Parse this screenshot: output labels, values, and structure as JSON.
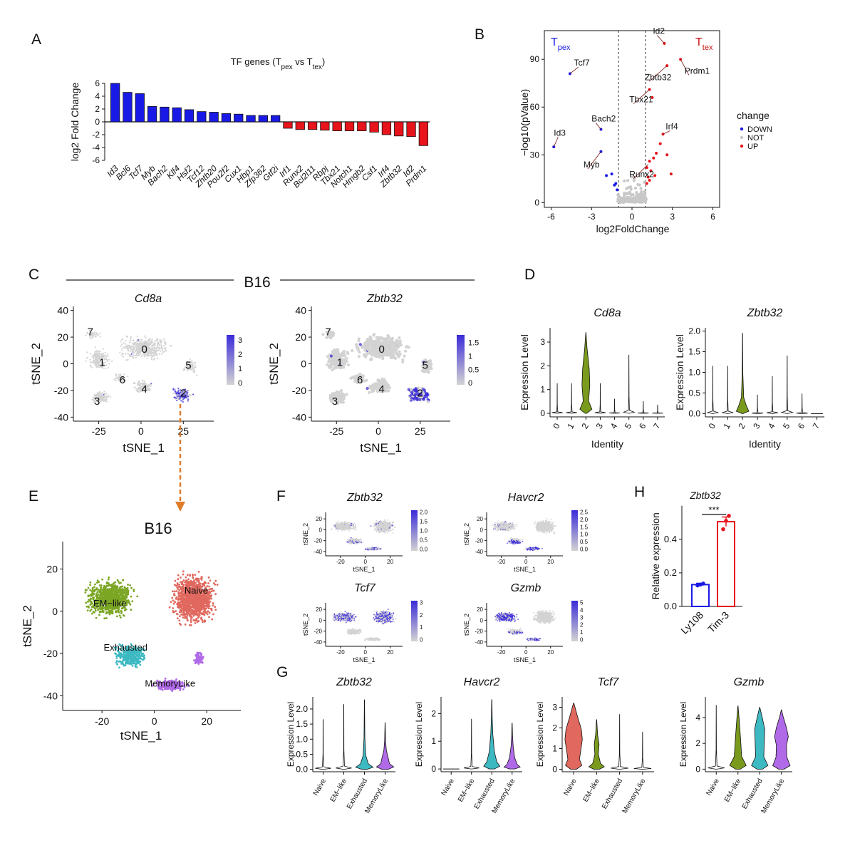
{
  "colors": {
    "up": "#e8141b",
    "down": "#1a1ae6",
    "not": "#c8c8c8",
    "feature_low": "#d3d3d3",
    "feature_high": "#3b2bd8",
    "naive": "#e0685e",
    "em_like": "#7ba624",
    "exhausted": "#3db9c2",
    "memory_like": "#b06ae8",
    "violin_green": "#7a9a1e",
    "arrow": "#e07b2a",
    "bar_ly108": "#1a1ae6",
    "bar_tim3": "#e8141b"
  },
  "panels": {
    "A": {
      "letter": "A",
      "title": "TF genes (T",
      "title_sub1": "pex",
      "title_mid": " vs T",
      "title_sub2": "tex",
      "title_end": ")"
    },
    "B": {
      "letter": "B",
      "tpex": "T",
      "tpex_sub": "pex",
      "ttex": "T",
      "ttex_sub": "tex"
    },
    "C": {
      "letter": "C",
      "cond": "B16",
      "feature1": "Cd8a",
      "feature2": "Zbtb32"
    },
    "D": {
      "letter": "D"
    },
    "E": {
      "letter": "E",
      "cond": "B16"
    },
    "F": {
      "letter": "F"
    },
    "G": {
      "letter": "G"
    },
    "H": {
      "letter": "H"
    }
  },
  "chart_data": [
    {
      "panel": "A",
      "type": "bar",
      "title": "TF genes (Tpex vs Ttex)",
      "ylabel": "log2 Fold Change",
      "ylim": [
        -6,
        6
      ],
      "yticks": [
        -6,
        -4,
        -2,
        0,
        2,
        4,
        6
      ],
      "categories": [
        "Id3",
        "Bcl6",
        "Tcf7",
        "Myb",
        "Bach2",
        "Klf4",
        "Hsf2",
        "Tcf12",
        "Zhtb20",
        "Pou2f2",
        "Cux1",
        "Hbp1",
        "Zfp362",
        "Gtf2i",
        "Irf1",
        "Runx2",
        "Bcl2l11",
        "Rbpj",
        "Tbx21",
        "Notch1",
        "Hmgb2",
        "Csf1",
        "Irf4",
        "Zbtb32",
        "Id2",
        "Prdm1"
      ],
      "values": [
        6.0,
        4.6,
        4.4,
        2.4,
        2.3,
        2.2,
        1.9,
        1.6,
        1.5,
        1.3,
        1.2,
        1.0,
        1.0,
        1.0,
        -1.0,
        -1.2,
        -1.2,
        -1.3,
        -1.4,
        -1.4,
        -1.4,
        -1.6,
        -2.0,
        -2.2,
        -2.3,
        -3.7
      ]
    },
    {
      "panel": "B",
      "type": "scatter",
      "xlabel": "log2FoldChange",
      "ylabel": "−log10(pValue)",
      "xlim": [
        -6.5,
        6.5
      ],
      "ylim": [
        -3,
        108
      ],
      "xticks": [
        -6,
        -3,
        0,
        3,
        6
      ],
      "yticks": [
        0,
        30,
        60,
        90
      ],
      "thresholds": [
        -1,
        1
      ],
      "legend_title": "change",
      "legend": [
        "DOWN",
        "NOT",
        "UP"
      ],
      "labels": [
        {
          "gene": "Id2",
          "x": 2.4,
          "y": 100,
          "tx": 1.55,
          "ty": 106
        },
        {
          "gene": "Tcf7",
          "x": -4.6,
          "y": 81,
          "tx": -4.3,
          "ty": 86
        },
        {
          "gene": "Prdm1",
          "x": 3.6,
          "y": 90,
          "tx": 3.9,
          "ty": 81
        },
        {
          "gene": "Zbtb32",
          "x": 2.6,
          "y": 86,
          "tx": 0.95,
          "ty": 77
        },
        {
          "gene": "Tbx21",
          "x": 1.3,
          "y": 71,
          "tx": -0.2,
          "ty": 63
        },
        {
          "gene": "Bach2",
          "x": -2.3,
          "y": 46,
          "tx": -3.0,
          "ty": 51
        },
        {
          "gene": "Irf4",
          "x": 2.3,
          "y": 43,
          "tx": 2.5,
          "ty": 46
        },
        {
          "gene": "Id3",
          "x": -5.8,
          "y": 35,
          "tx": -5.8,
          "ty": 42
        },
        {
          "gene": "Myb",
          "x": -2.3,
          "y": 32,
          "tx": -3.6,
          "ty": 22
        },
        {
          "gene": "Runx2",
          "x": 1.2,
          "y": 24,
          "tx": -0.2,
          "ty": 16
        }
      ],
      "up": [
        [
          2.4,
          100
        ],
        [
          3.6,
          90
        ],
        [
          2.6,
          86
        ],
        [
          1.3,
          71
        ],
        [
          2.3,
          43
        ],
        [
          1.5,
          66
        ],
        [
          2.1,
          37
        ],
        [
          1.8,
          31
        ],
        [
          1.6,
          28
        ],
        [
          1.3,
          26
        ],
        [
          2.6,
          30
        ],
        [
          1.1,
          22
        ],
        [
          1.4,
          20
        ],
        [
          2.9,
          18
        ],
        [
          1.7,
          17
        ],
        [
          1.2,
          16
        ],
        [
          1.3,
          14
        ],
        [
          1.1,
          12
        ]
      ],
      "down": [
        [
          -4.6,
          81
        ],
        [
          -5.8,
          35
        ],
        [
          -2.3,
          46
        ],
        [
          -2.3,
          32
        ],
        [
          -1.9,
          17
        ],
        [
          -1.5,
          18
        ],
        [
          -1.1,
          8
        ],
        [
          -1.2,
          12
        ],
        [
          -1.3,
          11
        ]
      ]
    },
    {
      "panel": "C1",
      "type": "scatter",
      "feature": "Cd8a",
      "xlabel": "tSNE_1",
      "ylabel": "tSNE_2",
      "xlim": [
        -40,
        43
      ],
      "ylim": [
        -43,
        43
      ],
      "xticks": [
        -25,
        0,
        25
      ],
      "yticks": [
        -40,
        -20,
        0,
        20,
        40
      ],
      "colorbar": [
        0,
        1,
        2,
        3
      ],
      "clusters": [
        {
          "label": "0",
          "x": 2,
          "y": 11
        },
        {
          "label": "1",
          "x": -23,
          "y": 1
        },
        {
          "label": "2",
          "x": 25,
          "y": -22
        },
        {
          "label": "3",
          "x": -26,
          "y": -28
        },
        {
          "label": "4",
          "x": 2,
          "y": -19
        },
        {
          "label": "5",
          "x": 28,
          "y": -1
        },
        {
          "label": "6",
          "x": -11,
          "y": -12
        },
        {
          "label": "7",
          "x": -30,
          "y": 24
        }
      ]
    },
    {
      "panel": "C2",
      "type": "scatter",
      "feature": "Zbtb32",
      "xlabel": "tSNE_1",
      "ylabel": "tSNE_2",
      "xlim": [
        -40,
        43
      ],
      "ylim": [
        -43,
        43
      ],
      "xticks": [
        -25,
        0,
        25
      ],
      "yticks": [
        -40,
        -20,
        0,
        20,
        40
      ],
      "colorbar": [
        0.0,
        0.5,
        1.0,
        1.5
      ],
      "clusters": [
        {
          "label": "0",
          "x": 2,
          "y": 11
        },
        {
          "label": "1",
          "x": -23,
          "y": 1
        },
        {
          "label": "2",
          "x": 25,
          "y": -22
        },
        {
          "label": "3",
          "x": -26,
          "y": -28
        },
        {
          "label": "4",
          "x": 2,
          "y": -19
        },
        {
          "label": "5",
          "x": 28,
          "y": -1
        },
        {
          "label": "6",
          "x": -11,
          "y": -12
        },
        {
          "label": "7",
          "x": -30,
          "y": 24
        }
      ]
    },
    {
      "panel": "D1",
      "type": "violin",
      "title": "Cd8a",
      "xlabel": "Identity",
      "ylabel": "Expression Level",
      "categories": [
        "0",
        "1",
        "2",
        "3",
        "4",
        "5",
        "6",
        "7"
      ],
      "ylim": [
        -0.15,
        3.6
      ],
      "yticks": [
        0,
        1,
        2,
        3
      ],
      "max_values": [
        1.25,
        1.25,
        3.4,
        1.25,
        0.6,
        2.45,
        0.5,
        0.35
      ],
      "highlight": 2
    },
    {
      "panel": "D2",
      "type": "violin",
      "title": "Zbtb32",
      "xlabel": "Identity",
      "ylabel": "Expression Level",
      "categories": [
        "0",
        "1",
        "2",
        "3",
        "4",
        "5",
        "6",
        "7"
      ],
      "ylim": [
        -0.08,
        2.08
      ],
      "yticks": [
        0.0,
        0.5,
        1.0,
        1.5,
        2.0
      ],
      "max_values": [
        1.15,
        1.15,
        1.95,
        0.45,
        0.9,
        1.4,
        0.48,
        0.0
      ],
      "highlight": 2
    },
    {
      "panel": "E",
      "type": "scatter",
      "xlabel": "tSNE_1",
      "ylabel": "tSNE_2",
      "xlim": [
        -35,
        33
      ],
      "ylim": [
        -47,
        33
      ],
      "xticks": [
        -20,
        0,
        20
      ],
      "yticks": [
        -40,
        -20,
        0,
        20
      ],
      "clusters": [
        {
          "label": "EM−like",
          "x": -17,
          "y": 4
        },
        {
          "label": "Naive",
          "x": 16,
          "y": 10
        },
        {
          "label": "Exhausted",
          "x": -11,
          "y": -17
        },
        {
          "label": "MemoryLike",
          "x": 6,
          "y": -34
        }
      ]
    },
    {
      "panel": "F",
      "type": "scatter",
      "xlabel": "tSNE_1",
      "ylabel": "tSNE_2",
      "xticks": [
        -20,
        0,
        20
      ],
      "yticks": [
        -40,
        -20,
        0,
        20
      ],
      "features": [
        {
          "name": "Zbtb32",
          "colorbar": [
            0.0,
            0.5,
            1.0,
            1.5,
            2.0
          ]
        },
        {
          "name": "Havcr2",
          "colorbar": [
            0.0,
            0.5,
            1.0,
            1.5,
            2.0,
            2.5
          ]
        },
        {
          "name": "Tcf7",
          "colorbar": [
            0,
            1,
            2,
            3
          ]
        },
        {
          "name": "Gzmb",
          "colorbar": [
            0,
            1,
            2,
            3,
            4,
            5
          ]
        }
      ]
    },
    {
      "panel": "G",
      "type": "violin",
      "ylabel": "Expression Level",
      "categories": [
        "Naive",
        "EM−like",
        "Exhausted",
        "MemoryLike"
      ],
      "plots": [
        {
          "title": "Zbtb32",
          "yticks": [
            0.0,
            0.5,
            1.0,
            1.5,
            2.0
          ],
          "ylim": [
            -0.08,
            2.4
          ],
          "max_values": [
            1.65,
            2.15,
            2.3,
            1.55
          ]
        },
        {
          "title": "Havcr2",
          "yticks": [
            0,
            1,
            2
          ],
          "ylim": [
            -0.1,
            2.6
          ],
          "max_values": [
            0.0,
            1.8,
            2.5,
            1.65
          ]
        },
        {
          "title": "Tcf7",
          "yticks": [
            0,
            1,
            2,
            3
          ],
          "ylim": [
            -0.12,
            3.5
          ],
          "max_values": [
            3.2,
            2.4,
            2.65,
            1.8
          ]
        },
        {
          "title": "Gzmb",
          "yticks": [
            0,
            2,
            4
          ],
          "ylim": [
            -0.2,
            5.6
          ],
          "max_values": [
            4.95,
            4.9,
            4.8,
            4.6
          ]
        }
      ]
    },
    {
      "panel": "H",
      "type": "bar",
      "title": "Zbtb32",
      "ylabel": "Relative expression",
      "categories": [
        "Ly108",
        "Tim-3"
      ],
      "values": [
        0.13,
        0.505
      ],
      "errors": [
        0.008,
        0.028
      ],
      "points": [
        [
          0.125,
          0.13,
          0.136
        ],
        [
          0.46,
          0.51,
          0.54
        ]
      ],
      "ylim": [
        0,
        0.62
      ],
      "yticks": [
        0.0,
        0.2,
        0.4
      ],
      "significance": "***"
    }
  ]
}
